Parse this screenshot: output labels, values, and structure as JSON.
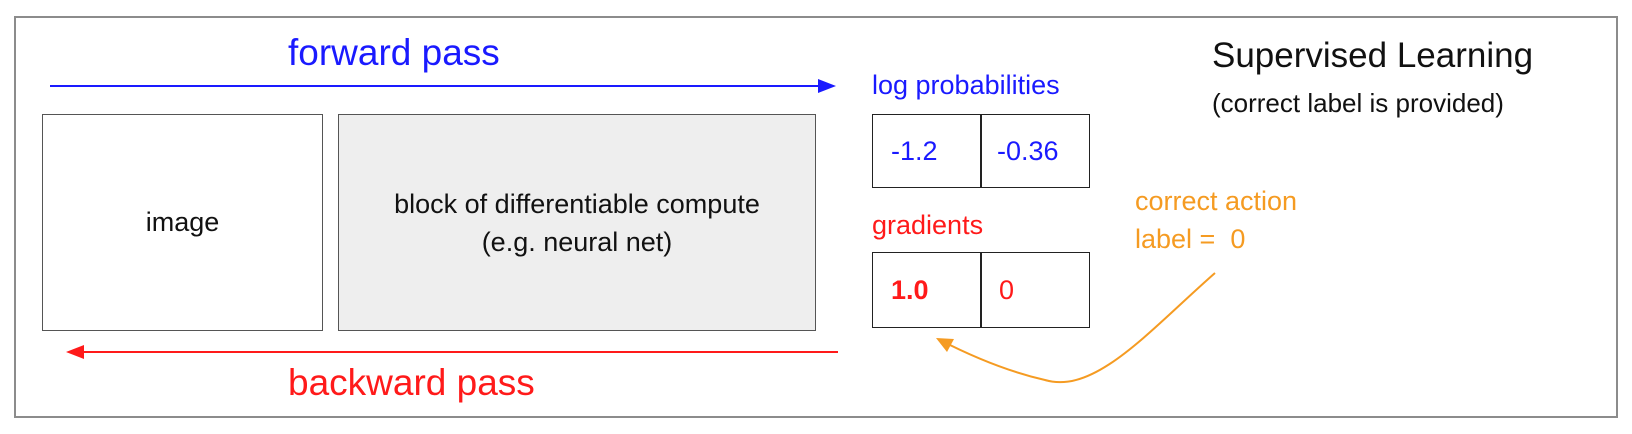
{
  "forward_pass": "forward pass",
  "backward_pass": "backward pass",
  "image_box": "image",
  "compute_box": {
    "line1": "block of differentiable compute",
    "line2": "(e.g. neural net)"
  },
  "log_probabilities": {
    "label": "log probabilities",
    "values": [
      "-1.2",
      "-0.36"
    ]
  },
  "gradients": {
    "label": "gradients",
    "values": [
      "1.0",
      "0"
    ]
  },
  "correct_action": {
    "line1": "correct action",
    "line2": "label =  0"
  },
  "title": {
    "main": "Supervised Learning",
    "sub": "(correct label is provided)"
  },
  "colors": {
    "forward": "#1a1aff",
    "backward": "#ff1a1a",
    "label_arrow": "#f59b22",
    "compute_fill": "#eeeeee"
  }
}
